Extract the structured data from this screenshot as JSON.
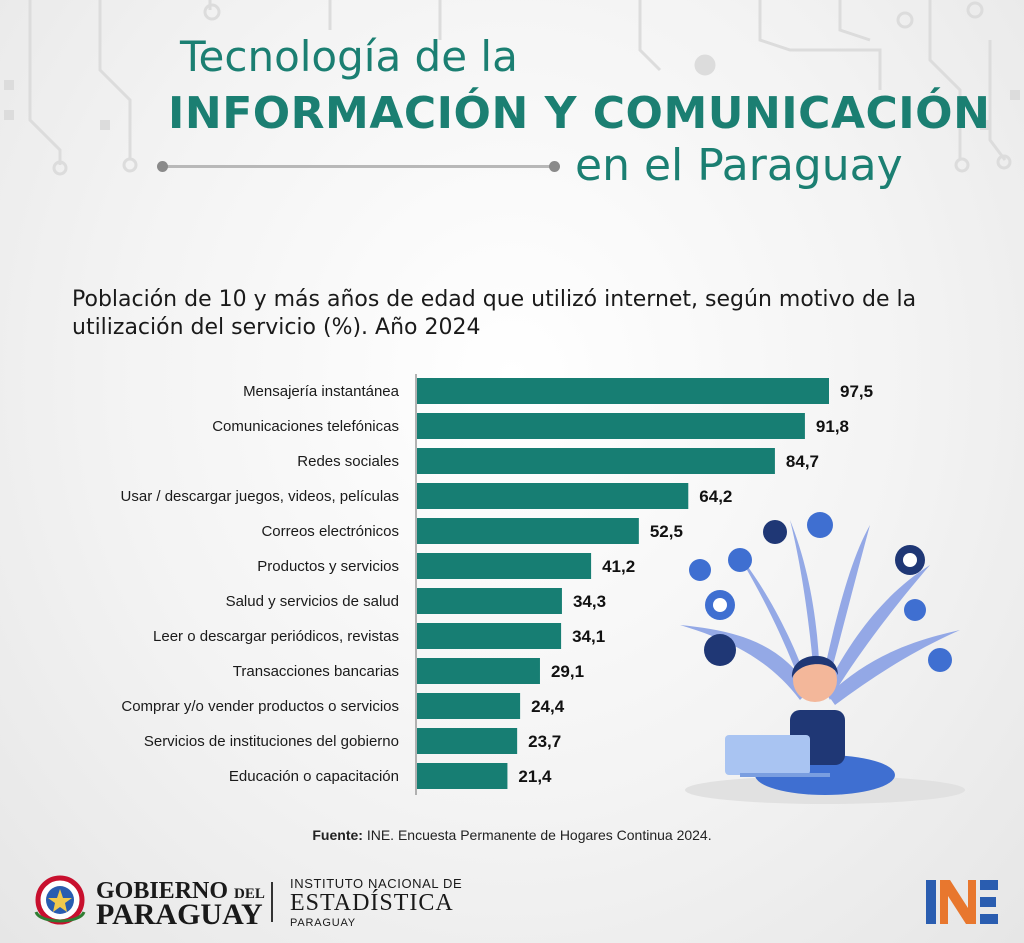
{
  "title": {
    "line1": "Tecnología de la",
    "line2": "INFORMACIÓN Y COMUNICACIÓN",
    "line3": "en el Paraguay"
  },
  "colors": {
    "accent": "#1b7f72",
    "bar": "#177e73",
    "text": "#1a1a1a"
  },
  "chart_data": {
    "type": "bar",
    "orientation": "horizontal",
    "title": "Población de 10 y más años de edad que utilizó internet, según motivo de la utilización del servicio (%). Año 2024",
    "categories": [
      "Mensajería instantánea",
      "Comunicaciones telefónicas",
      "Redes sociales",
      "Usar / descargar juegos, videos, películas",
      "Correos electrónicos",
      "Productos y servicios",
      "Salud y servicios de salud",
      "Leer o descargar periódicos, revistas",
      "Transacciones bancarias",
      "Comprar y/o vender productos o servicios",
      "Servicios de instituciones del gobierno",
      "Educación o capacitación"
    ],
    "values": [
      97.5,
      91.8,
      84.7,
      64.2,
      52.5,
      41.2,
      34.3,
      34.1,
      29.1,
      24.4,
      23.7,
      21.4
    ],
    "value_labels": [
      "97,5",
      "91,8",
      "84,7",
      "64,2",
      "52,5",
      "41,2",
      "34,3",
      "34,1",
      "29,1",
      "24,4",
      "23,7",
      "21,4"
    ],
    "xlim": [
      0,
      100
    ],
    "xlabel": "",
    "ylabel": "",
    "grid": false,
    "legend": "none"
  },
  "source": {
    "label": "Fuente:",
    "text": " INE. Encuesta Permanente de Hogares Continua 2024."
  },
  "footer": {
    "gov_line1": "GOBIERNO",
    "gov_del": "DEL",
    "gov_line2": "PARAGUAY",
    "ine_line1": "INSTITUTO NACIONAL DE",
    "ine_line2": "ESTADÍSTICA",
    "ine_line3": "PARAGUAY",
    "ine_logo_text": "INE",
    "gov_seal_icon": "paraguay-coat-of-arms-icon"
  },
  "illustration": {
    "icon": "woman-laptop-internet-illustration"
  }
}
